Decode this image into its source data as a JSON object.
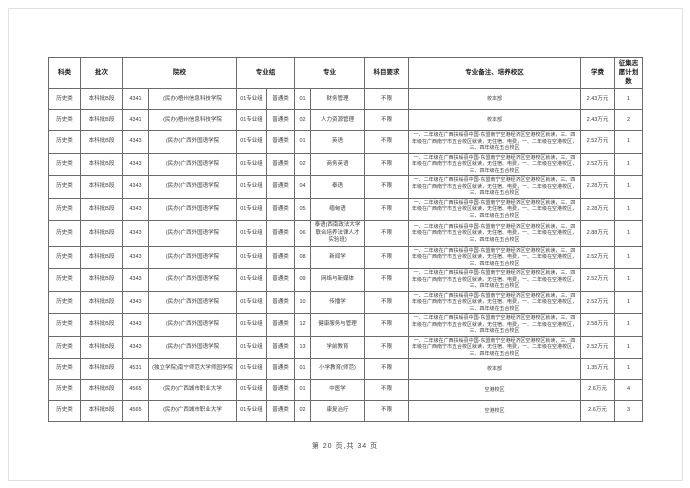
{
  "table": {
    "headers": {
      "category": "科类",
      "batch": "批次",
      "institution": "院校",
      "major_group": "专业组",
      "major": "专业",
      "subject_req": "科目要求",
      "notes": "专业备注、培养校区",
      "tuition": "学费",
      "plan_count": "征集志愿计划数"
    },
    "shared_note": "一、二年级在广西扶绥县中国-东盟南宁空港经济区空港校区就读，三、四年级在广西南宁市五合校区就读，无住宿、电费，一、二年级在空港校区，三、四年级在五合校区",
    "rows": [
      {
        "category": "历史类",
        "batch": "本科批B段",
        "inst_code": "4341",
        "inst_name": "(民办)梧州信息科技学院",
        "group": "01专业组",
        "group_type": "普通类",
        "major_code": "01",
        "major_name": "财务管理",
        "subject_req": "不限",
        "note": "校本部",
        "tuition": "2.43万元",
        "plans": "1"
      },
      {
        "category": "历史类",
        "batch": "本科批B段",
        "inst_code": "4341",
        "inst_name": "(民办)梧州信息科技学院",
        "group": "01专业组",
        "group_type": "普通类",
        "major_code": "02",
        "major_name": "人力资源管理",
        "subject_req": "不限",
        "note": "校本部",
        "tuition": "2.43万元",
        "plans": "2"
      },
      {
        "category": "历史类",
        "batch": "本科批B段",
        "inst_code": "4343",
        "inst_name": "(民办)广西外国语学院",
        "group": "01专业组",
        "group_type": "普通类",
        "major_code": "01",
        "major_name": "英语",
        "subject_req": "不限",
        "note": "一、二年级在广西扶绥县中国-东盟南宁空港经济区空港校区就读，三、四年级在广西南宁市五合校区就读，无住宿、电费，一、二年级在空港校区，三、四年级在五合校区",
        "tuition": "2.52万元",
        "plans": "1"
      },
      {
        "category": "历史类",
        "batch": "本科批B段",
        "inst_code": "4343",
        "inst_name": "(民办)广西外国语学院",
        "group": "01专业组",
        "group_type": "普通类",
        "major_code": "02",
        "major_name": "商务英语",
        "subject_req": "不限",
        "note": "一、二年级在广西扶绥县中国-东盟南宁空港经济区空港校区就读，三、四年级在广西南宁市五合校区就读，无住宿、电费，一、二年级在空港校区，三、四年级在五合校区",
        "tuition": "2.52万元",
        "plans": "1"
      },
      {
        "category": "历史类",
        "batch": "本科批B段",
        "inst_code": "4343",
        "inst_name": "(民办)广西外国语学院",
        "group": "01专业组",
        "group_type": "普通类",
        "major_code": "04",
        "major_name": "泰语",
        "subject_req": "不限",
        "note": "一、二年级在广西扶绥县中国-东盟南宁空港经济区空港校区就读，三、四年级在广西南宁市五合校区就读，无住宿、电费，一、二年级在空港校区，三、四年级在五合校区",
        "tuition": "2.28万元",
        "plans": "1"
      },
      {
        "category": "历史类",
        "batch": "本科批B段",
        "inst_code": "4343",
        "inst_name": "(民办)广西外国语学院",
        "group": "01专业组",
        "group_type": "普通类",
        "major_code": "05",
        "major_name": "缅甸语",
        "subject_req": "不限",
        "note": "一、二年级在广西扶绥县中国-东盟南宁空港经济区空港校区就读，三、四年级在广西南宁市五合校区就读，无住宿、电费，一、二年级在空港校区，三、四年级在五合校区",
        "tuition": "2.28万元",
        "plans": "1"
      },
      {
        "category": "历史类",
        "batch": "本科批B段",
        "inst_code": "4343",
        "inst_name": "(民办)广西外国语学院",
        "group": "01专业组",
        "group_type": "普通类",
        "major_code": "06",
        "major_name": "泰语(西南政法大学联合培养法律人才实验班)",
        "subject_req": "不限",
        "note": "一、二年级在广西扶绥县中国-东盟南宁空港经济区空港校区就读，三、四年级在广西南宁市五合校区就读，无住宿、电费，一、二年级在空港校区，三、四年级在五合校区",
        "tuition": "2.88万元",
        "plans": "1"
      },
      {
        "category": "历史类",
        "batch": "本科批B段",
        "inst_code": "4343",
        "inst_name": "(民办)广西外国语学院",
        "group": "01专业组",
        "group_type": "普通类",
        "major_code": "08",
        "major_name": "新闻学",
        "subject_req": "不限",
        "note": "一、二年级在广西扶绥县中国-东盟南宁空港经济区空港校区就读，三、四年级在广西南宁市五合校区就读，无住宿、电费，一、二年级在空港校区，三、四年级在五合校区",
        "tuition": "2.52万元",
        "plans": "1"
      },
      {
        "category": "历史类",
        "batch": "本科批B段",
        "inst_code": "4343",
        "inst_name": "(民办)广西外国语学院",
        "group": "01专业组",
        "group_type": "普通类",
        "major_code": "09",
        "major_name": "网络与新媒体",
        "subject_req": "不限",
        "note": "一、二年级在广西扶绥县中国-东盟南宁空港经济区空港校区就读，三、四年级在广西南宁市五合校区就读，无住宿、电费，一、二年级在空港校区，三、四年级在五合校区",
        "tuition": "2.52万元",
        "plans": "1"
      },
      {
        "category": "历史类",
        "batch": "本科批B段",
        "inst_code": "4343",
        "inst_name": "(民办)广西外国语学院",
        "group": "01专业组",
        "group_type": "普通类",
        "major_code": "10",
        "major_name": "传播学",
        "subject_req": "不限",
        "note": "一、二年级在广西扶绥县中国-东盟南宁空港经济区空港校区就读，三、四年级在广西南宁市五合校区就读，无住宿、电费，一、二年级在空港校区，三、四年级在五合校区",
        "tuition": "2.52万元",
        "plans": "1"
      },
      {
        "category": "历史类",
        "batch": "本科批B段",
        "inst_code": "4343",
        "inst_name": "(民办)广西外国语学院",
        "group": "01专业组",
        "group_type": "普通类",
        "major_code": "12",
        "major_name": "健康服务与管理",
        "subject_req": "不限",
        "note": "一、二年级在广西扶绥县中国-东盟南宁空港经济区空港校区就读，三、四年级在广西南宁市五合校区就读，无住宿、电费，一、二年级在空港校区，三、四年级在五合校区",
        "tuition": "2.58万元",
        "plans": "1"
      },
      {
        "category": "历史类",
        "batch": "本科批B段",
        "inst_code": "4343",
        "inst_name": "(民办)广西外国语学院",
        "group": "01专业组",
        "group_type": "普通类",
        "major_code": "13",
        "major_name": "学前教育",
        "subject_req": "不限",
        "note": "一、二年级在广西扶绥县中国-东盟南宁空港经济区空港校区就读，三、四年级在广西南宁市五合校区就读，无住宿、电费，一、二年级在空港校区，三、四年级在五合校区",
        "tuition": "2.52万元",
        "plans": "1"
      },
      {
        "category": "历史类",
        "batch": "本科批B段",
        "inst_code": "4531",
        "inst_name": "(独立学院)南宁师范大学师园学院",
        "group": "01专业组",
        "group_type": "普通类",
        "major_code": "01",
        "major_name": "小学教育(师范)",
        "subject_req": "不限",
        "note": "校本部",
        "tuition": "1.35万元",
        "plans": "1"
      },
      {
        "category": "历史类",
        "batch": "本科批B段",
        "inst_code": "4565",
        "inst_name": "(民办)广西城市职业大学",
        "group": "01专业组",
        "group_type": "普通类",
        "major_code": "01",
        "major_name": "中医学",
        "subject_req": "不限",
        "note": "空港校区",
        "tuition": "2.6万元",
        "plans": "4"
      },
      {
        "category": "历史类",
        "batch": "本科批B段",
        "inst_code": "4565",
        "inst_name": "(民办)广西城市职业大学",
        "group": "01专业组",
        "group_type": "普通类",
        "major_code": "02",
        "major_name": "康复治疗",
        "subject_req": "不限",
        "note": "空港校区",
        "tuition": "2.6万元",
        "plans": "3"
      }
    ]
  },
  "footer": {
    "page_indicator": "第 20 页,共 34 页"
  }
}
